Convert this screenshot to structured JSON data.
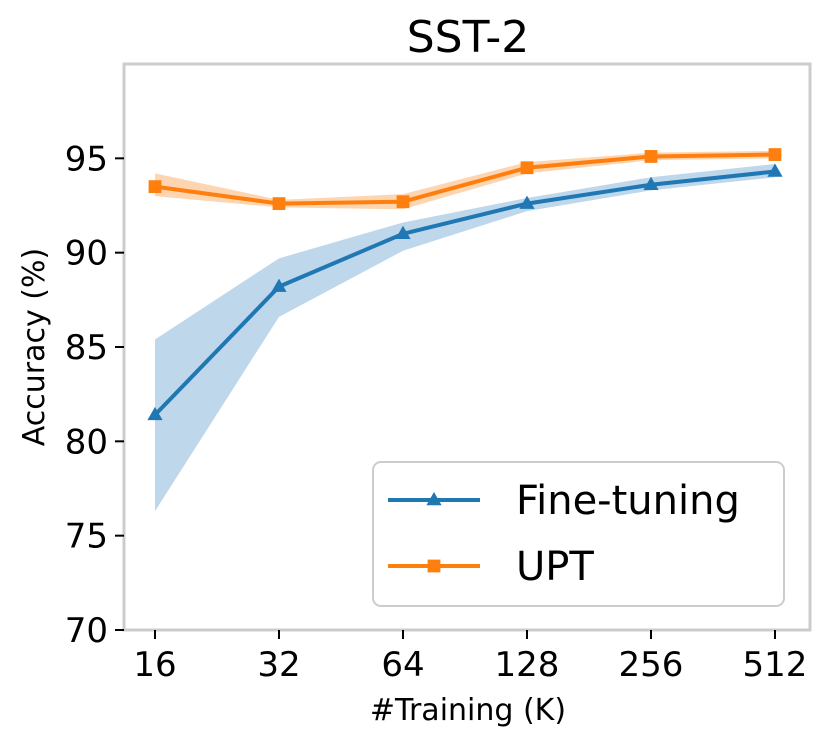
{
  "chart_data": {
    "type": "line",
    "title": "SST-2",
    "xlabel": "#Training (K)",
    "ylabel": "Accuracy (%)",
    "categories": [
      "16",
      "32",
      "64",
      "128",
      "256",
      "512"
    ],
    "ylim": [
      70,
      100
    ],
    "yticks": [
      70,
      75,
      80,
      85,
      90,
      95
    ],
    "grid": false,
    "legend_position": "bottom-right",
    "series": [
      {
        "name": "Fine-tuning",
        "color": "#1f77b4",
        "band_color": "#bcd5ea",
        "marker": "triangle",
        "values": [
          81.4,
          88.2,
          91.0,
          92.6,
          93.6,
          94.3
        ],
        "lower": [
          76.3,
          86.6,
          90.1,
          92.2,
          93.3,
          94.0
        ],
        "upper": [
          85.4,
          89.7,
          91.6,
          92.9,
          94.0,
          94.7
        ]
      },
      {
        "name": "UPT",
        "color": "#ff7f0e",
        "band_color": "#fdd3ad",
        "marker": "square",
        "values": [
          93.5,
          92.6,
          92.7,
          94.5,
          95.1,
          95.2
        ],
        "lower": [
          93.0,
          92.4,
          92.3,
          94.2,
          94.9,
          95.0
        ],
        "upper": [
          94.2,
          92.8,
          93.1,
          94.8,
          95.3,
          95.4
        ]
      }
    ]
  }
}
